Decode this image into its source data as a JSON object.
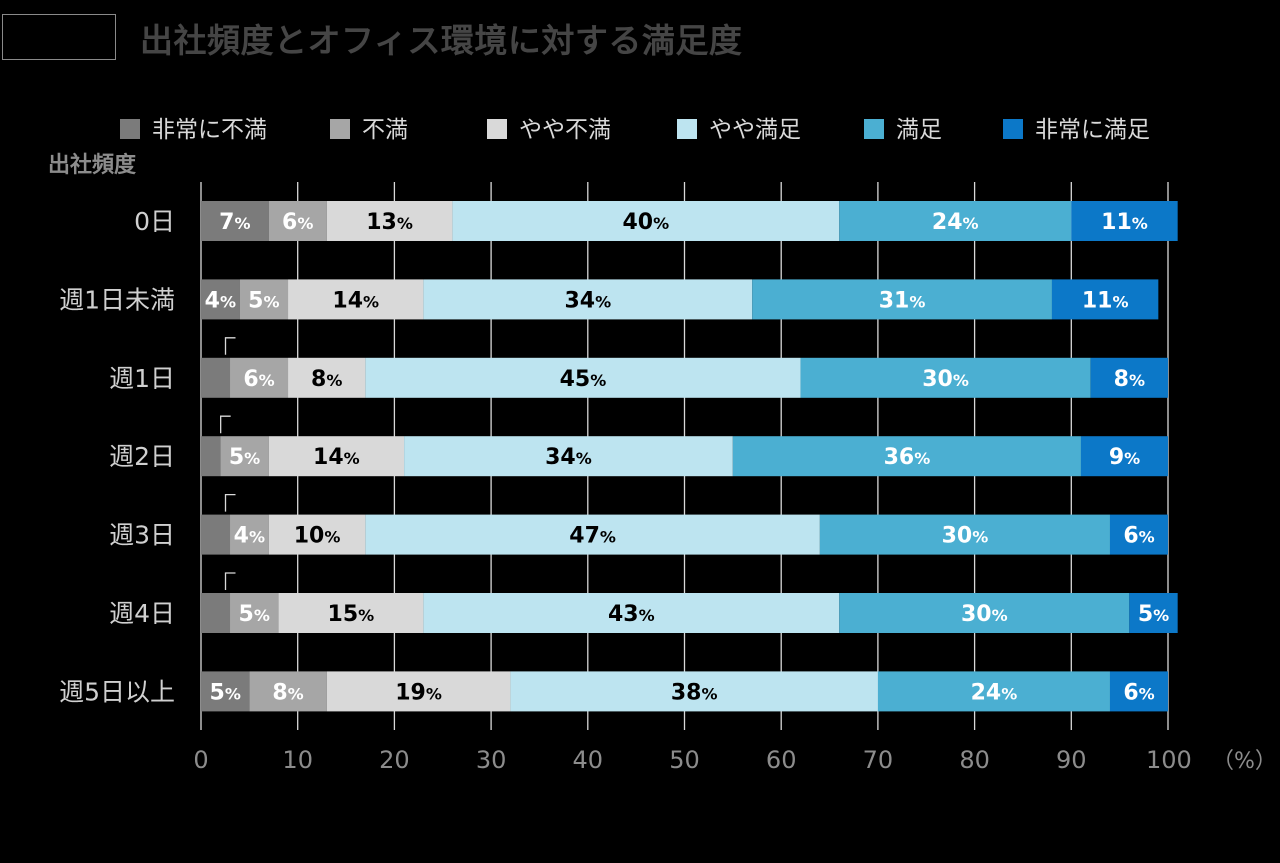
{
  "header": {
    "title": "出社頻度とオフィス環境に対する満足度"
  },
  "chart_data": {
    "type": "bar",
    "orientation": "horizontal-stacked-100",
    "title": "出社頻度とオフィス環境に対する満足度",
    "ylabel": "出社頻度",
    "xlabel": "",
    "x_unit": "（%）",
    "xlim": [
      0,
      100
    ],
    "x_ticks": [
      "0",
      "10",
      "20",
      "30",
      "40",
      "50",
      "60",
      "70",
      "80",
      "90",
      "100"
    ],
    "categories": [
      "0日",
      "週1日未満",
      "週1日",
      "週2日",
      "週3日",
      "週4日",
      "週5日以上"
    ],
    "series": [
      {
        "name": "非常に不満",
        "color": "#7b7b7b",
        "text_color": "#ffffff",
        "values": [
          7,
          4,
          3,
          2,
          3,
          3,
          5
        ],
        "labels": [
          "7%",
          "4%",
          "",
          "",
          "",
          "",
          "5%"
        ]
      },
      {
        "name": "不満",
        "color": "#a6a6a6",
        "text_color": "#ffffff",
        "values": [
          6,
          5,
          6,
          5,
          4,
          5,
          8
        ],
        "labels": [
          "6%",
          "5%",
          "6%",
          "5%",
          "4%",
          "5%",
          "8%"
        ]
      },
      {
        "name": "やや不満",
        "color": "#d9d9d9",
        "text_color": "#000000",
        "values": [
          13,
          14,
          8,
          14,
          10,
          15,
          19
        ],
        "labels": [
          "13%",
          "14%",
          "8%",
          "14%",
          "10%",
          "15%",
          "19%"
        ]
      },
      {
        "name": "やや満足",
        "color": "#bde4f0",
        "text_color": "#000000",
        "values": [
          40,
          34,
          45,
          34,
          47,
          43,
          38
        ],
        "labels": [
          "40%",
          "34%",
          "45%",
          "34%",
          "47%",
          "43%",
          "38%"
        ]
      },
      {
        "name": "満足",
        "color": "#4bafd2",
        "text_color": "#ffffff",
        "values": [
          24,
          31,
          30,
          36,
          30,
          30,
          24
        ],
        "labels": [
          "24%",
          "31%",
          "30%",
          "36%",
          "30%",
          "30%",
          "24%"
        ]
      },
      {
        "name": "非常に満足",
        "color": "#0c78c8",
        "text_color": "#ffffff",
        "values": [
          11,
          11,
          8,
          9,
          6,
          5,
          6
        ],
        "labels": [
          "11%",
          "11%",
          "8%",
          "9%",
          "6%",
          "5%",
          "6%"
        ]
      }
    ],
    "grid": true,
    "legend_position": "top"
  }
}
